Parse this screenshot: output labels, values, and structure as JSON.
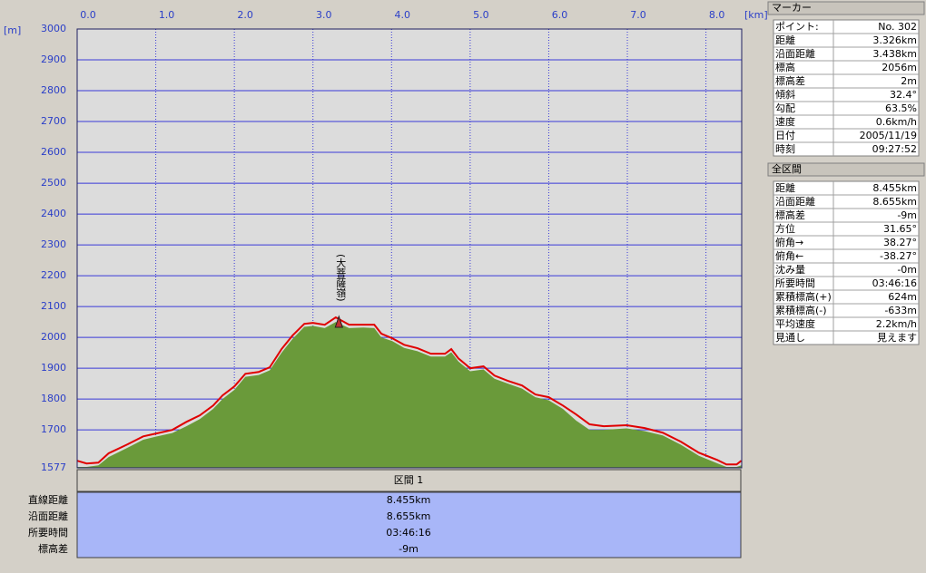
{
  "chart_data": {
    "type": "area-line",
    "xlabel": "[km]",
    "ylabel": "[m]",
    "x": [
      0,
      0.12,
      0.27,
      0.4,
      0.64,
      0.84,
      1.0,
      1.21,
      1.39,
      1.56,
      1.73,
      1.85,
      2.0,
      2.14,
      2.31,
      2.45,
      2.6,
      2.74,
      2.89,
      3.0,
      3.15,
      3.29,
      3.46,
      3.64,
      3.78,
      3.87,
      4.01,
      4.16,
      4.33,
      4.5,
      4.68,
      4.76,
      4.85,
      5.0,
      5.17,
      5.31,
      5.48,
      5.66,
      5.83,
      6.0,
      6.18,
      6.35,
      6.52,
      6.7,
      6.99,
      7.22,
      7.45,
      7.68,
      7.91,
      8.14,
      8.26,
      8.39,
      8.45
    ],
    "series": [
      {
        "color": "#6a9a3a",
        "values": [
          1580,
          1580,
          1585,
          1612,
          1642,
          1668,
          1678,
          1690,
          1712,
          1735,
          1768,
          1800,
          1830,
          1872,
          1878,
          1893,
          1950,
          1995,
          2034,
          2037,
          2030,
          2050,
          2030,
          2032,
          2030,
          2000,
          1988,
          1966,
          1955,
          1938,
          1938,
          1952,
          1922,
          1890,
          1896,
          1866,
          1850,
          1834,
          1806,
          1796,
          1768,
          1730,
          1700,
          1700,
          1705,
          1696,
          1682,
          1652,
          1616,
          1592,
          1580,
          1580,
          1585
        ]
      },
      {
        "color": "#e00000",
        "values": [
          1600,
          1591,
          1594,
          1624,
          1653,
          1679,
          1688,
          1700,
          1726,
          1747,
          1779,
          1812,
          1841,
          1882,
          1888,
          1903,
          1962,
          2006,
          2044,
          2047,
          2041,
          2065,
          2041,
          2041,
          2041,
          2012,
          1997,
          1976,
          1965,
          1947,
          1947,
          1962,
          1932,
          1900,
          1906,
          1876,
          1859,
          1844,
          1815,
          1806,
          1779,
          1750,
          1718,
          1712,
          1715,
          1706,
          1691,
          1662,
          1626,
          1603,
          1588,
          1588,
          1600
        ]
      }
    ],
    "annotation": {
      "text": "(大菩薩嶺)",
      "x": 3.33
    },
    "xlim": [
      0,
      8.455
    ],
    "xticks": [
      {
        "value": 0,
        "label": "0.0"
      },
      {
        "value": 1,
        "label": "1.0"
      },
      {
        "value": 2,
        "label": "2.0"
      },
      {
        "value": 3,
        "label": "3.0"
      },
      {
        "value": 4,
        "label": "4.0"
      },
      {
        "value": 5,
        "label": "5.0"
      },
      {
        "value": 6,
        "label": "6.0"
      },
      {
        "value": 7,
        "label": "7.0"
      },
      {
        "value": 8,
        "label": "8.0"
      }
    ],
    "ylim": [
      1577,
      3000
    ],
    "yticks": [
      1577,
      1700,
      1800,
      1900,
      2000,
      2100,
      2200,
      2300,
      2400,
      2500,
      2600,
      2700,
      2800,
      2900,
      3000
    ],
    "grid": true
  },
  "marker_panel": {
    "title": "マーカー",
    "rows": [
      [
        "ポイント:",
        "No. 302"
      ],
      [
        "距離",
        "3.326km"
      ],
      [
        "沿面距離",
        "3.438km"
      ],
      [
        "標高",
        "2056m"
      ],
      [
        "標高差",
        "2m"
      ],
      [
        "傾斜",
        "32.4°"
      ],
      [
        "勾配",
        "63.5%"
      ],
      [
        "速度",
        "0.6km/h"
      ],
      [
        "日付",
        "2005/11/19"
      ],
      [
        "時刻",
        "09:27:52"
      ]
    ]
  },
  "total_panel": {
    "title": "全区間",
    "rows": [
      [
        "距離",
        "8.455km"
      ],
      [
        "沿面距離",
        "8.655km"
      ],
      [
        "標高差",
        "-9m"
      ],
      [
        "方位",
        "31.65°"
      ],
      [
        "俯角→",
        "38.27°"
      ],
      [
        "俯角←",
        "-38.27°"
      ],
      [
        "沈み量",
        "-0m"
      ],
      [
        "所要時間",
        "03:46:16"
      ],
      [
        "累積標高(+)",
        "624m"
      ],
      [
        "累積標高(-)",
        "-633m"
      ],
      [
        "平均速度",
        "2.2km/h"
      ],
      [
        "見通し",
        "見えます"
      ]
    ]
  },
  "section_table": {
    "header": "区間 1",
    "rows": [
      [
        "直線距離",
        "8.455km"
      ],
      [
        "沿面距離",
        "8.655km"
      ],
      [
        "所要時間",
        "03:46:16"
      ],
      [
        "標高差",
        "-9m"
      ]
    ]
  }
}
